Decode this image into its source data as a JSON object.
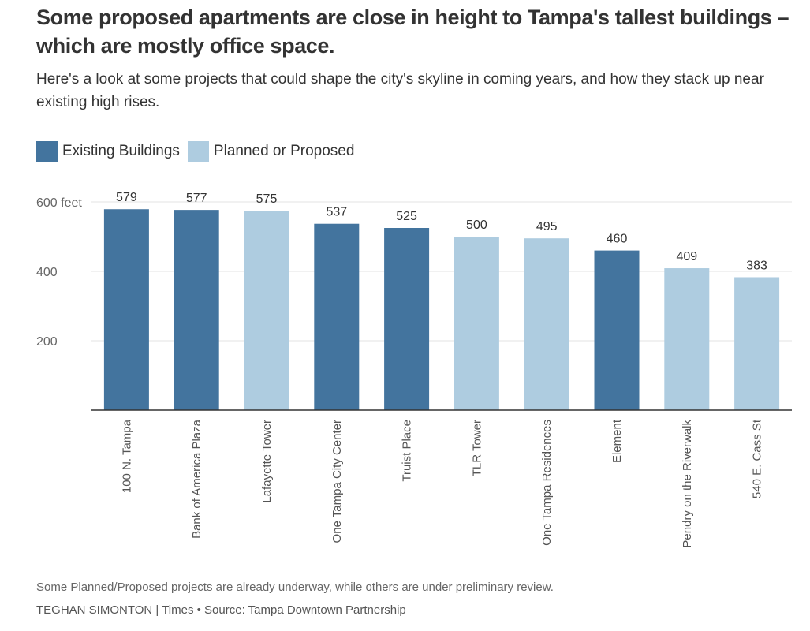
{
  "header": {
    "title": "Some proposed apartments are close in height to Tampa's tallest buildings – which are mostly office space.",
    "subtitle": "Here's a look at some projects that could shape the city's skyline in coming years, and how they stack up near existing high rises."
  },
  "legend": [
    {
      "label": "Existing Buildings",
      "color": "#43749e"
    },
    {
      "label": "Planned or Proposed",
      "color": "#aecce0"
    }
  ],
  "chart_data": {
    "type": "bar",
    "title": "Some proposed apartments are close in height to Tampa's tallest buildings – which are mostly office space.",
    "ylabel": "feet",
    "ylim": [
      0,
      600
    ],
    "yticks": [
      {
        "value": 200,
        "label": "200"
      },
      {
        "value": 400,
        "label": "400"
      },
      {
        "value": 600,
        "label": "600 feet"
      }
    ],
    "grid": true,
    "legend_position": "top-left",
    "categories": [
      "100 N. Tampa",
      "Bank of America Plaza",
      "Lafayette Tower",
      "One Tampa City Center",
      "Truist Place",
      "TLR Tower",
      "One Tampa Residences",
      "Element",
      "Pendry on the Riverwalk",
      "540 E. Cass St"
    ],
    "values": [
      579,
      577,
      575,
      537,
      525,
      500,
      495,
      460,
      409,
      383
    ],
    "groups": [
      "Existing Buildings",
      "Existing Buildings",
      "Planned or Proposed",
      "Existing Buildings",
      "Existing Buildings",
      "Planned or Proposed",
      "Planned or Proposed",
      "Existing Buildings",
      "Planned or Proposed",
      "Planned or Proposed"
    ],
    "colors": {
      "Existing Buildings": "#43749e",
      "Planned or Proposed": "#aecce0"
    }
  },
  "footer": {
    "note": "Some Planned/Proposed projects are already underway, while others are under preliminary review.",
    "credit": "TEGHAN SIMONTON | Times • Source: Tampa Downtown Partnership"
  }
}
